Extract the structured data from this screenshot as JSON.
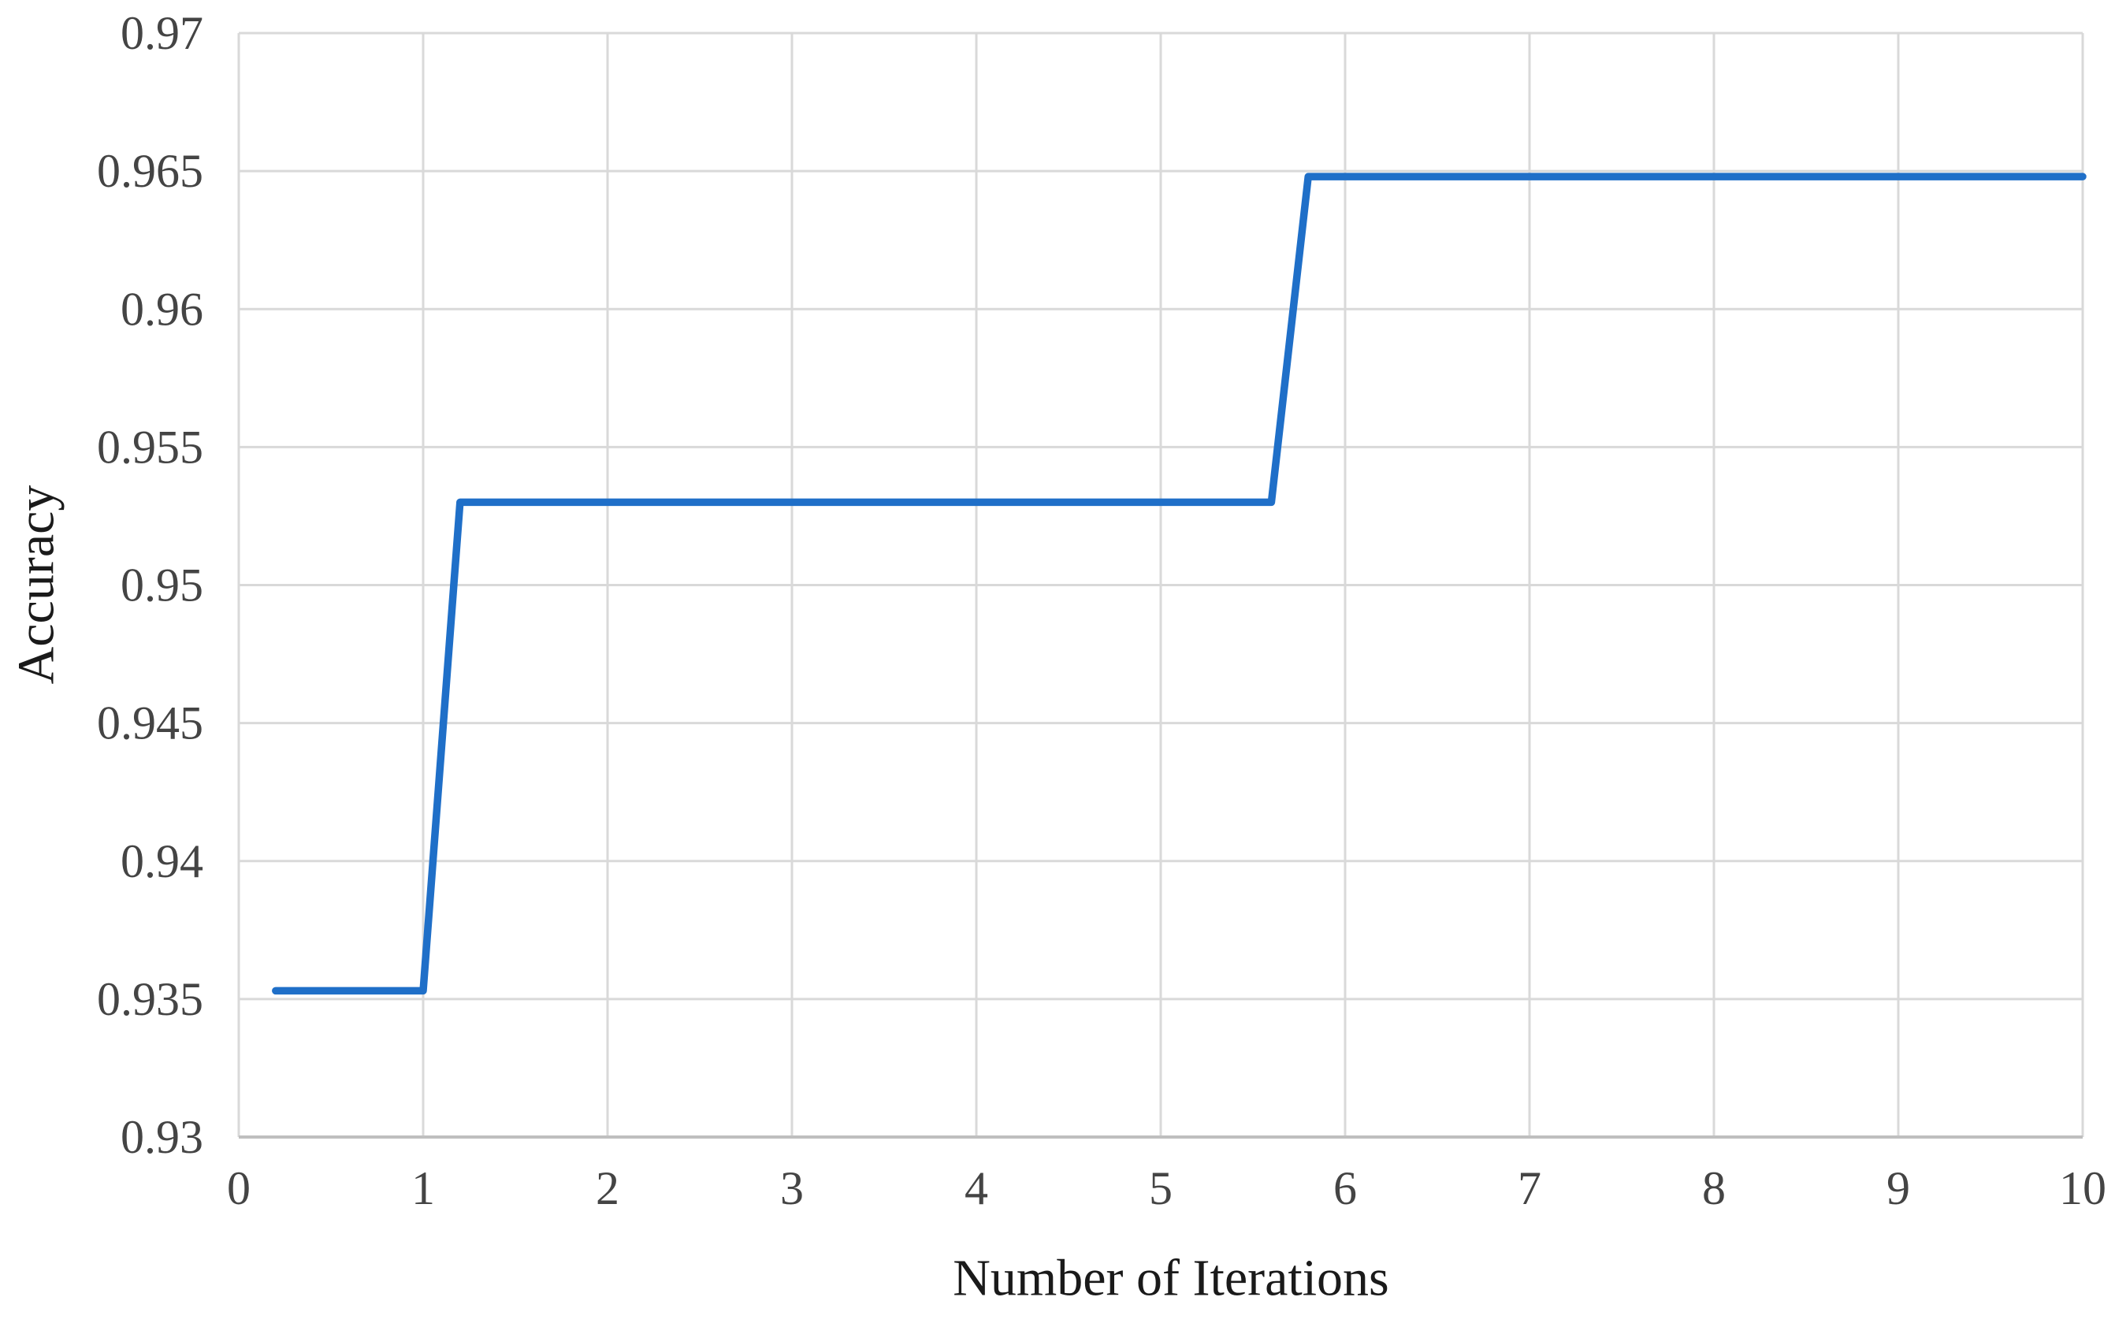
{
  "figure": {
    "background": "#ffffff",
    "kind": "line-chart-figure"
  },
  "chart_data": {
    "type": "line",
    "title": "",
    "xlabel": "Number of Iterations",
    "ylabel": "Accuracy",
    "xlim": [
      0,
      10
    ],
    "ylim": [
      0.93,
      0.97
    ],
    "x_ticks": [
      0,
      1,
      2,
      3,
      4,
      5,
      6,
      7,
      8,
      9,
      10
    ],
    "x_tick_labels": [
      "0",
      "1",
      "2",
      "3",
      "4",
      "5",
      "6",
      "7",
      "8",
      "9",
      "10"
    ],
    "y_ticks": [
      0.93,
      0.935,
      0.94,
      0.945,
      0.95,
      0.955,
      0.96,
      0.965,
      0.97
    ],
    "y_tick_labels": [
      "0.93",
      "0.935",
      "0.94",
      "0.945",
      "0.95",
      "0.955",
      "0.96",
      "0.965",
      "0.97"
    ],
    "grid": true,
    "legend_position": "none",
    "series": [
      {
        "name": "Accuracy",
        "points": [
          [
            0.2,
            0.9353
          ],
          [
            1.0,
            0.9353
          ],
          [
            1.2,
            0.953
          ],
          [
            5.6,
            0.953
          ],
          [
            5.8,
            0.9648
          ],
          [
            10.0,
            0.9648
          ]
        ]
      }
    ],
    "colors": {
      "line": "#1f6fc8",
      "gridline": "#d9d9d9",
      "axis_line": "#bfbfbf",
      "tick_label": "#444444",
      "axis_title": "#1a1a1a",
      "background": "#ffffff"
    }
  }
}
